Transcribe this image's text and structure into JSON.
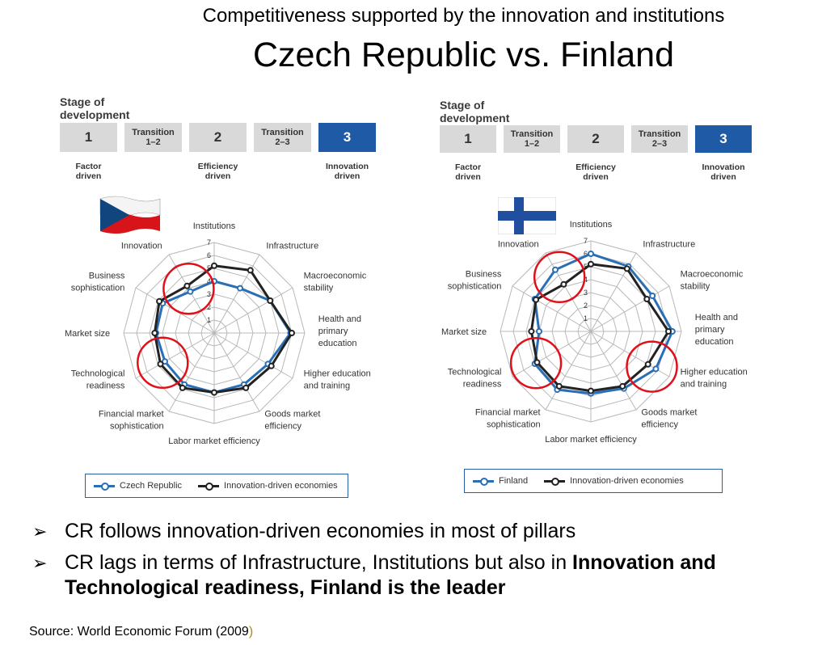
{
  "slide": {
    "title_line1": "Competitiveness supported by the innovation and institutions",
    "title_line2": "Czech Republic vs. Finland",
    "bullets": [
      {
        "text": "CR follows innovation-driven economies in most of pillars",
        "bold_tail": ""
      },
      {
        "text": "CR lags in terms of Infrastructure, Institutions but also in ",
        "bold_tail": "Innovation and Technological readiness, Finland is the leader"
      }
    ],
    "source_prefix": "Source: World Economic Forum (2009",
    "source_paren": ")"
  },
  "stage": {
    "heading": "Stage of development",
    "boxes": [
      {
        "label": "1",
        "caption": "Factor\ndriven"
      },
      {
        "label": "Transition\n1–2",
        "caption": ""
      },
      {
        "label": "2",
        "caption": "Efficiency\ndriven"
      },
      {
        "label": "Transition\n2–3",
        "caption": ""
      },
      {
        "label": "3",
        "caption": "Innovation\ndriven"
      }
    ],
    "active_index": 4
  },
  "colors": {
    "country": "#2a6fb5",
    "benchmark": "#222222",
    "grid": "#b8b8b8",
    "highlight": "#e0101a",
    "stage_active": "#1f5aa6",
    "stage_inactive": "#d9d9d9"
  },
  "chart_data": [
    {
      "type": "radar",
      "country": "Czech Republic",
      "categories": [
        "Institutions",
        "Infrastructure",
        "Macroeconomic stability",
        "Health and primary education",
        "Higher education and training",
        "Goods market efficiency",
        "Labor market efficiency",
        "Financial market sophistication",
        "Technological readiness",
        "Market size",
        "Business sophistication",
        "Innovation"
      ],
      "axis_ticks": [
        "1",
        "2",
        "3",
        "4",
        "5",
        "6",
        "7"
      ],
      "rmin": 1,
      "rmax": 7,
      "series": [
        {
          "name": "Czech Republic",
          "values": [
            4.0,
            4.0,
            5.0,
            5.9,
            4.8,
            4.6,
            4.6,
            4.6,
            4.4,
            4.5,
            4.6,
            3.7
          ]
        },
        {
          "name": "Innovation-driven economies",
          "values": [
            5.2,
            5.6,
            5.0,
            6.0,
            5.1,
            4.9,
            4.6,
            4.9,
            4.8,
            4.6,
            4.9,
            4.2
          ]
        }
      ],
      "highlight_axes": [
        11,
        8
      ]
    },
    {
      "type": "radar",
      "country": "Finland",
      "categories": [
        "Institutions",
        "Infrastructure",
        "Macroeconomic stability",
        "Health and primary education",
        "Higher education and training",
        "Goods market efficiency",
        "Labor market efficiency",
        "Financial market sophistication",
        "Technological readiness",
        "Market size",
        "Business sophistication",
        "Innovation"
      ],
      "axis_ticks": [
        "1",
        "2",
        "3",
        "4",
        "5",
        "6",
        "7"
      ],
      "rmin": 1,
      "rmax": 7,
      "series": [
        {
          "name": "Finland",
          "values": [
            6.0,
            5.8,
            5.5,
            6.3,
            5.8,
            5.1,
            4.8,
            5.2,
            5.0,
            4.0,
            5.0,
            5.5
          ]
        },
        {
          "name": "Innovation-driven economies",
          "values": [
            5.2,
            5.6,
            5.0,
            6.0,
            5.1,
            4.9,
            4.6,
            4.9,
            4.8,
            4.6,
            4.9,
            4.2
          ]
        }
      ],
      "highlight_axes": [
        11,
        8,
        4
      ]
    }
  ]
}
